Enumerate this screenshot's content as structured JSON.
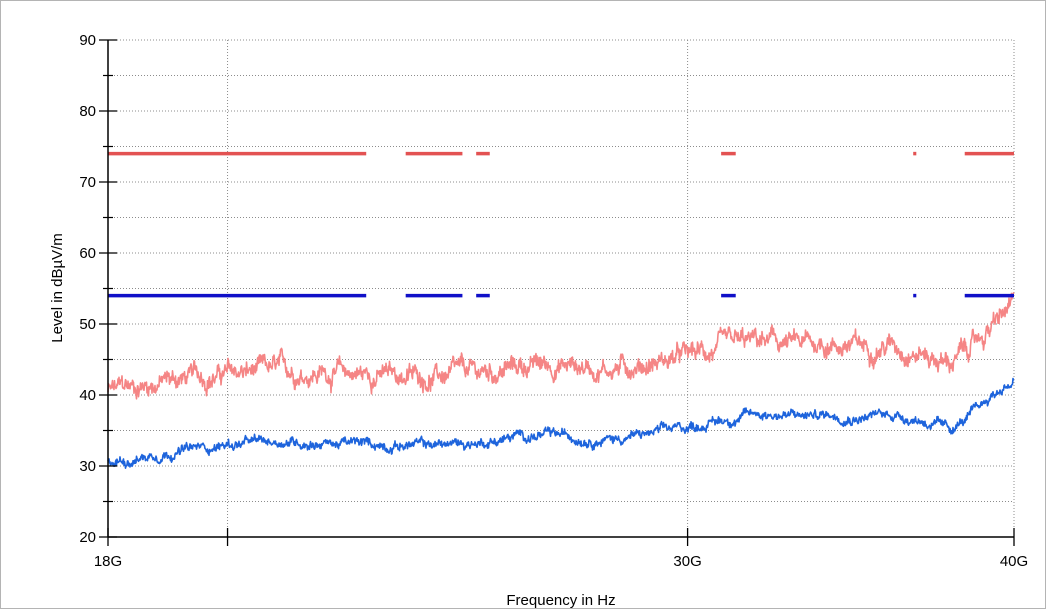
{
  "chart_data": {
    "type": "line",
    "xlabel": "Frequency in Hz",
    "ylabel": "Level in dBµV/m",
    "x_scale": "log",
    "xlim_hz": [
      18000000000,
      40000000000
    ],
    "ylim": [
      20,
      90
    ],
    "y_major_ticks": [
      20,
      30,
      40,
      50,
      60,
      70,
      80,
      90
    ],
    "y_minor_ticks": [
      25,
      35,
      45,
      55,
      65,
      75,
      85
    ],
    "x_labeled_ticks": [
      {
        "value": 18000000000,
        "label": "18G"
      },
      {
        "value": 30000000000,
        "label": "30G"
      },
      {
        "value": 40000000000,
        "label": "40G"
      }
    ],
    "x_unlabeled_ticks": [
      20000000000
    ],
    "grid": true,
    "limit_lines": [
      {
        "color": "#e35252",
        "level": 74,
        "segments_hz": [
          [
            18000000000,
            22600000000
          ],
          [
            23400000000,
            24600000000
          ],
          [
            24900000000,
            25200000000
          ],
          [
            30900000000,
            31300000000
          ],
          [
            36600000000,
            36700000000
          ],
          [
            38300000000,
            40000000000
          ]
        ]
      },
      {
        "color": "#1010c8",
        "level": 54,
        "segments_hz": [
          [
            18000000000,
            22600000000
          ],
          [
            23400000000,
            24600000000
          ],
          [
            24900000000,
            25200000000
          ],
          [
            30900000000,
            31300000000
          ],
          [
            36600000000,
            36700000000
          ],
          [
            38300000000,
            40000000000
          ]
        ]
      }
    ],
    "series": [
      {
        "color": "#f58585",
        "noise": 1.4,
        "points": [
          [
            18000000000,
            40.5
          ],
          [
            18500000000,
            41.3
          ],
          [
            19000000000,
            42.2
          ],
          [
            19500000000,
            42.6
          ],
          [
            20000000000,
            43.0
          ],
          [
            21000000000,
            43.4
          ],
          [
            22000000000,
            43.2
          ],
          [
            23000000000,
            42.8
          ],
          [
            24000000000,
            42.6
          ],
          [
            25000000000,
            43.0
          ],
          [
            26000000000,
            44.2
          ],
          [
            27000000000,
            44.2
          ],
          [
            28000000000,
            43.8
          ],
          [
            29000000000,
            44.5
          ],
          [
            30000000000,
            45.5
          ],
          [
            31000000000,
            46.5
          ],
          [
            32000000000,
            47.5
          ],
          [
            33000000000,
            47.0
          ],
          [
            34000000000,
            47.3
          ],
          [
            35000000000,
            46.8
          ],
          [
            36000000000,
            47.3
          ],
          [
            37000000000,
            45.8
          ],
          [
            37800000000,
            44.5
          ],
          [
            38500000000,
            46.8
          ],
          [
            39200000000,
            49.5
          ],
          [
            40000000000,
            52.5
          ]
        ]
      },
      {
        "color": "#1e64dc",
        "noise": 0.7,
        "points": [
          [
            18000000000,
            30.5
          ],
          [
            18500000000,
            31.2
          ],
          [
            19000000000,
            32.0
          ],
          [
            19500000000,
            32.5
          ],
          [
            20000000000,
            33.0
          ],
          [
            21000000000,
            33.5
          ],
          [
            22000000000,
            33.2
          ],
          [
            23000000000,
            33.0
          ],
          [
            24000000000,
            33.0
          ],
          [
            25000000000,
            33.3
          ],
          [
            26000000000,
            34.3
          ],
          [
            27000000000,
            34.2
          ],
          [
            28000000000,
            33.8
          ],
          [
            29000000000,
            34.5
          ],
          [
            30000000000,
            35.5
          ],
          [
            31000000000,
            36.5
          ],
          [
            32000000000,
            37.5
          ],
          [
            33000000000,
            37.0
          ],
          [
            34000000000,
            37.3
          ],
          [
            35000000000,
            37.0
          ],
          [
            36000000000,
            37.3
          ],
          [
            37000000000,
            36.3
          ],
          [
            37800000000,
            35.0
          ],
          [
            38500000000,
            37.0
          ],
          [
            39200000000,
            39.8
          ],
          [
            40000000000,
            42.0
          ]
        ]
      }
    ]
  }
}
